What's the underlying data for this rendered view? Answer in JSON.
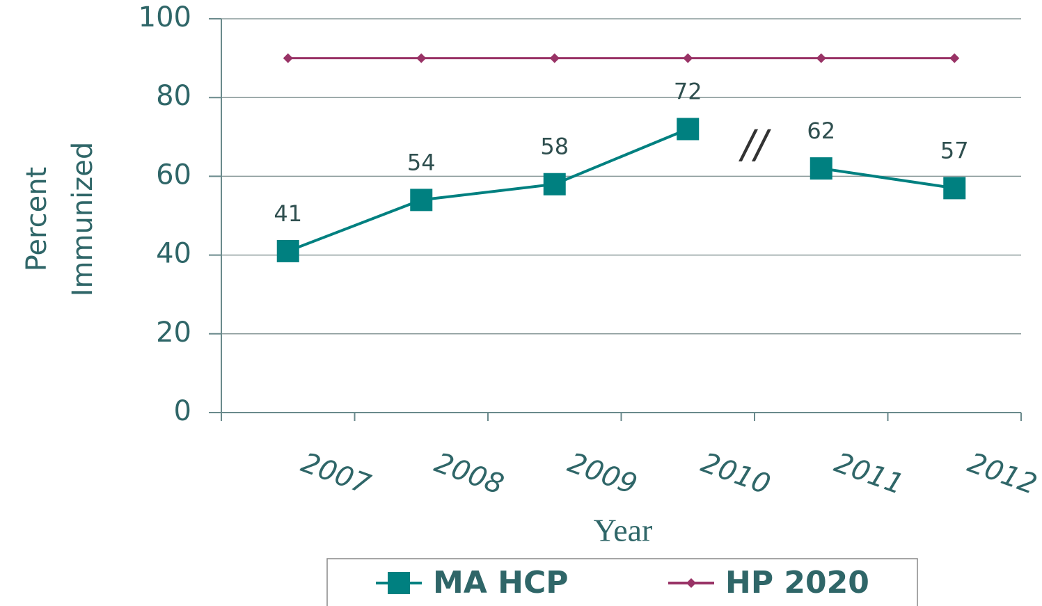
{
  "chart_data": {
    "type": "line",
    "categories": [
      "2007",
      "2008",
      "2009",
      "2010",
      "2011",
      "2012"
    ],
    "series": [
      {
        "name": "MA HCP",
        "color": "#008080",
        "marker": "square",
        "values": [
          41,
          54,
          58,
          72,
          62,
          57
        ]
      },
      {
        "name": "HP 2020",
        "color": "#993366",
        "marker": "diamond",
        "values": [
          90,
          90,
          90,
          90,
          90,
          90
        ]
      }
    ],
    "annotations": [
      {
        "text": "//",
        "after": "2010"
      }
    ],
    "xlabel": "Year",
    "ylabel": "Percent Immunized",
    "ylim": [
      0,
      100
    ],
    "yticks": [
      0,
      20,
      40,
      60,
      80,
      100
    ],
    "grid": true,
    "legend": "bottom"
  }
}
